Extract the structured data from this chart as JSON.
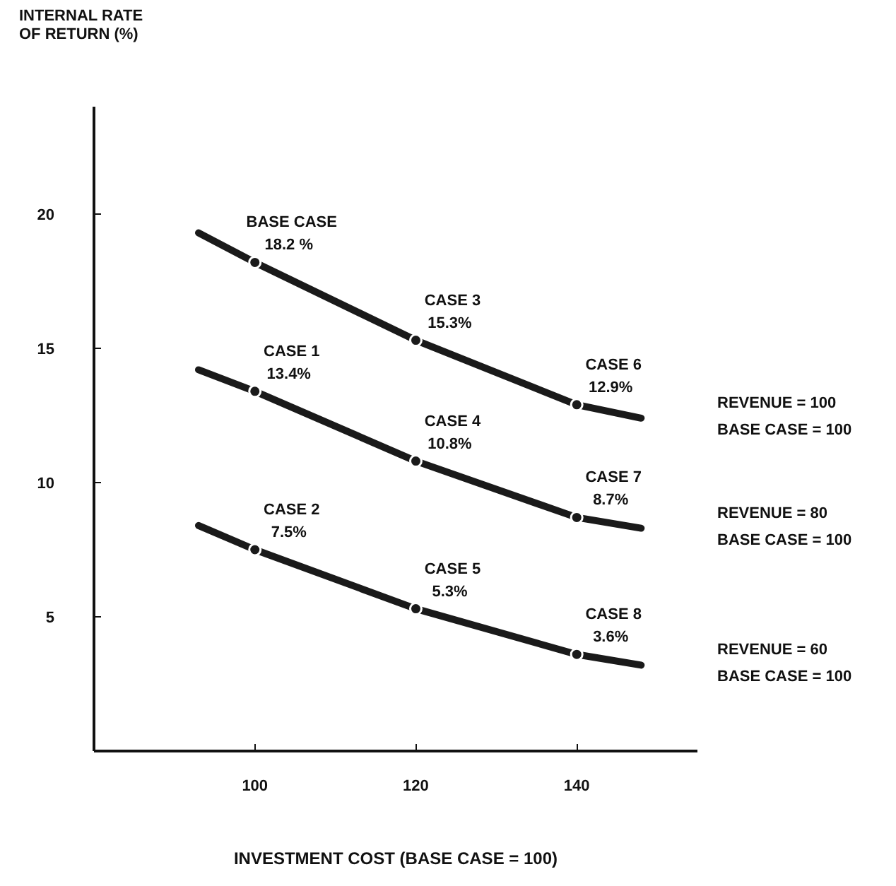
{
  "chart_data": {
    "type": "line",
    "xlabel": "INVESTMENT COST (BASE CASE = 100)",
    "ylabel": "INTERNAL RATE OF RETURN (%)",
    "xlim": [
      80,
      155
    ],
    "ylim": [
      0,
      24
    ],
    "xticks": [
      100,
      120,
      140
    ],
    "yticks": [
      5,
      10,
      15,
      20
    ],
    "grid": false,
    "series": [
      {
        "name": "REVENUE = 100 BASE CASE = 100",
        "color": "#1a1a1a",
        "x": [
          93,
          100,
          120,
          140,
          148
        ],
        "values": [
          19.3,
          18.2,
          15.3,
          12.9,
          12.4
        ],
        "line_style": "solid"
      },
      {
        "type": "scatter",
        "color": "#1a1a1a",
        "x": [
          100,
          120,
          140
        ],
        "values": [
          18.2,
          15.3,
          12.9
        ],
        "value_labels": [
          "18.2 %",
          "15.3%",
          "12.9%"
        ],
        "marker": "circle"
      },
      {
        "name": "REVENUE = 80 BASE CASE = 100",
        "color": "#1a1a1a",
        "x": [
          93,
          100,
          120,
          140,
          148
        ],
        "values": [
          14.2,
          13.4,
          10.8,
          8.7,
          8.3
        ],
        "line_style": "solid"
      },
      {
        "type": "scatter",
        "color": "#1a1a1a",
        "x": [
          100,
          120,
          140
        ],
        "values": [
          13.4,
          10.8,
          8.7
        ],
        "value_labels": [
          "13.4%",
          "10.8%",
          "8.7%"
        ],
        "marker": "circle"
      },
      {
        "name": "REVENUE = 60 BASE CASE = 100",
        "color": "#1a1a1a",
        "x": [
          93,
          100,
          120,
          140,
          148
        ],
        "values": [
          8.4,
          7.5,
          5.3,
          3.6,
          3.2
        ],
        "line_style": "solid"
      },
      {
        "type": "scatter",
        "color": "#1a1a1a",
        "x": [
          100,
          120,
          140
        ],
        "values": [
          7.5,
          5.3,
          3.6
        ],
        "value_labels": [
          "7.5%",
          "5.3%",
          "3.6%"
        ],
        "marker": "circle"
      }
    ],
    "annotations": [
      {
        "text": "BASE CASE",
        "x": 100,
        "y": 18.2
      },
      {
        "text": "CASE 3",
        "x": 120,
        "y": 15.3
      },
      {
        "text": "CASE 6",
        "x": 140,
        "y": 12.9
      },
      {
        "text": "CASE 1",
        "x": 100,
        "y": 13.4
      },
      {
        "text": "CASE 4",
        "x": 120,
        "y": 10.8
      },
      {
        "text": "CASE 7",
        "x": 140,
        "y": 8.7
      },
      {
        "text": "CASE 2",
        "x": 100,
        "y": 7.5
      },
      {
        "text": "CASE 5",
        "x": 120,
        "y": 5.3
      },
      {
        "text": "CASE 8",
        "x": 140,
        "y": 3.6
      }
    ]
  }
}
